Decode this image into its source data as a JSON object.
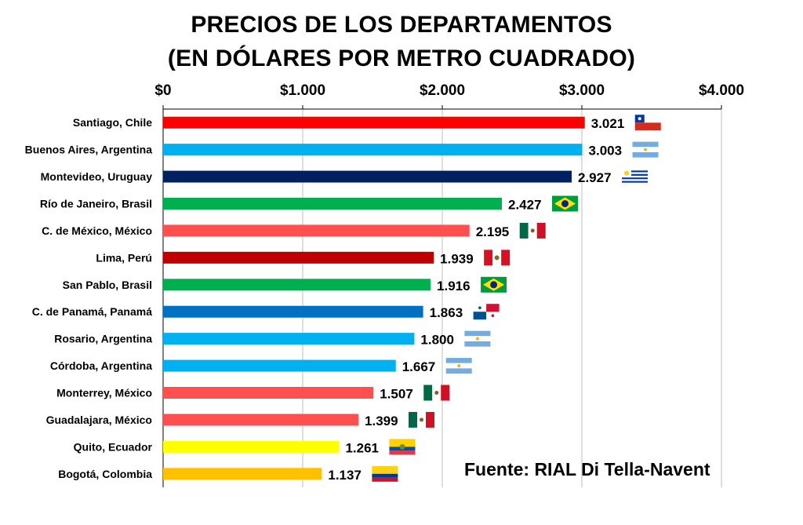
{
  "chart_data": {
    "type": "bar",
    "orientation": "horizontal",
    "title": "PRECIOS DE LOS DEPARTAMENTOS",
    "subtitle": "(EN DÓLARES POR METRO CUADRADO)",
    "xlim": [
      0,
      4000
    ],
    "grid": true,
    "legend": "none",
    "tick_labels": [
      "$0",
      "$1.000",
      "$2.000",
      "$3.000",
      "$4.000"
    ],
    "categories": [
      "Santiago, Chile",
      "Buenos Aires, Argentina",
      "Montevideo, Uruguay",
      "Río de Janeiro, Brasil",
      "C. de México, México",
      "Lima, Perú",
      "San Pablo, Brasil",
      "C. de Panamá, Panamá",
      "Rosario, Argentina",
      "Córdoba, Argentina",
      "Monterrey, México",
      "Guadalajara, México",
      "Quito, Ecuador",
      "Bogotá, Colombia"
    ],
    "values": [
      3021,
      3003,
      2927,
      2427,
      2195,
      1939,
      1916,
      1863,
      1800,
      1667,
      1507,
      1399,
      1261,
      1137
    ],
    "value_labels": [
      "3.021",
      "3.003",
      "2.927",
      "2.427",
      "2.195",
      "1.939",
      "1.916",
      "1.863",
      "1.800",
      "1.667",
      "1.507",
      "1.399",
      "1.261",
      "1.137"
    ],
    "bar_colors": [
      "#ff0000",
      "#00b0f0",
      "#002060",
      "#00b050",
      "#ff4f4f",
      "#c00000",
      "#00b050",
      "#0070c0",
      "#00b0f0",
      "#00b0f0",
      "#ff4f4f",
      "#ff4f4f",
      "#ffff00",
      "#ffc000"
    ],
    "flags": [
      "chile-flag-icon",
      "argentina-flag-icon",
      "uruguay-flag-icon",
      "brazil-flag-icon",
      "mexico-flag-icon",
      "peru-flag-icon",
      "brazil-flag-icon",
      "panama-flag-icon",
      "argentina-flag-icon",
      "argentina-flag-icon",
      "mexico-flag-icon",
      "mexico-flag-icon",
      "ecuador-flag-icon",
      "colombia-flag-icon"
    ],
    "source": "Fuente: RIAL Di Tella-Navent"
  }
}
